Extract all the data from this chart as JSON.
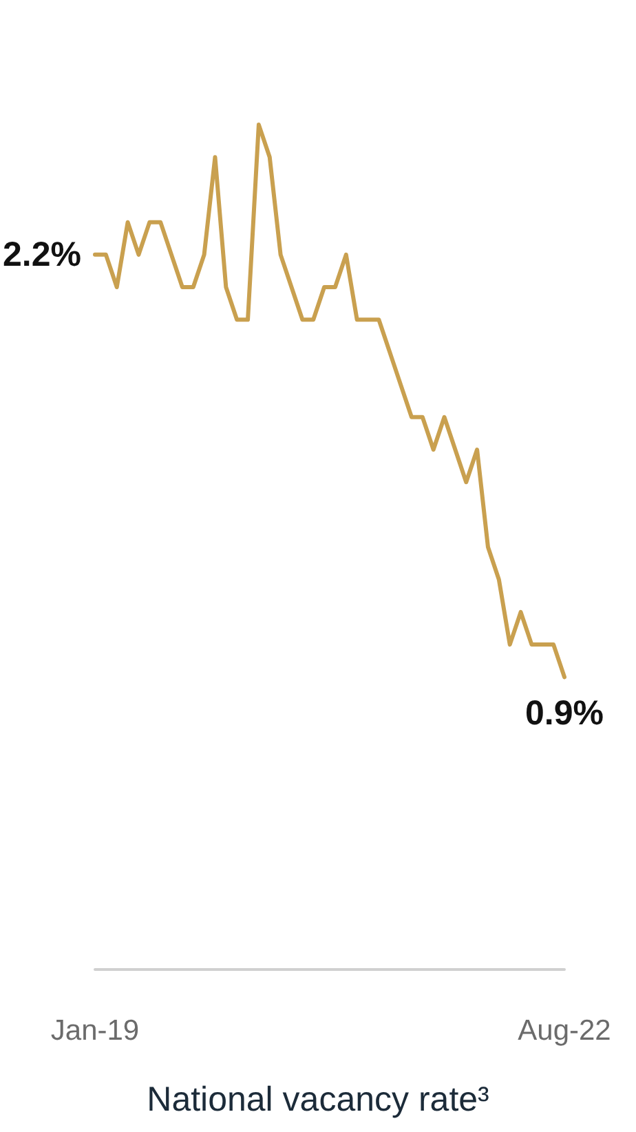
{
  "chart_data": {
    "type": "line",
    "title": "National vacancy rate³",
    "categories": [
      "Jan-19",
      null,
      null,
      null,
      null,
      null,
      null,
      null,
      null,
      null,
      null,
      null,
      null,
      null,
      null,
      null,
      null,
      null,
      null,
      null,
      null,
      null,
      null,
      null,
      null,
      null,
      null,
      null,
      null,
      null,
      null,
      null,
      null,
      null,
      null,
      null,
      null,
      null,
      null,
      null,
      null,
      null,
      null,
      "Aug-22"
    ],
    "series": [
      {
        "color": "#c9a04f",
        "values": [
          2.2,
          2.2,
          2.1,
          2.3,
          2.2,
          2.3,
          2.3,
          2.2,
          2.1,
          2.1,
          2.2,
          2.5,
          2.1,
          2.0,
          2.0,
          2.6,
          2.5,
          2.2,
          2.1,
          2.0,
          2.0,
          2.1,
          2.1,
          2.2,
          2.0,
          2.0,
          2.0,
          1.9,
          1.8,
          1.7,
          1.7,
          1.6,
          1.7,
          1.6,
          1.5,
          1.6,
          1.3,
          1.2,
          1.0,
          1.1,
          1.0,
          1.0,
          1.0,
          0.9
        ],
        "value_labels": [
          "2.2%",
          null,
          null,
          null,
          null,
          null,
          null,
          null,
          null,
          null,
          null,
          null,
          null,
          null,
          null,
          null,
          null,
          null,
          null,
          null,
          null,
          null,
          null,
          null,
          null,
          null,
          null,
          null,
          null,
          null,
          null,
          null,
          null,
          null,
          null,
          null,
          null,
          null,
          null,
          null,
          null,
          null,
          null,
          "0.9%"
        ]
      }
    ],
    "tick_labels": "x",
    "grid": false,
    "marker": "none",
    "line_style": "solid"
  }
}
